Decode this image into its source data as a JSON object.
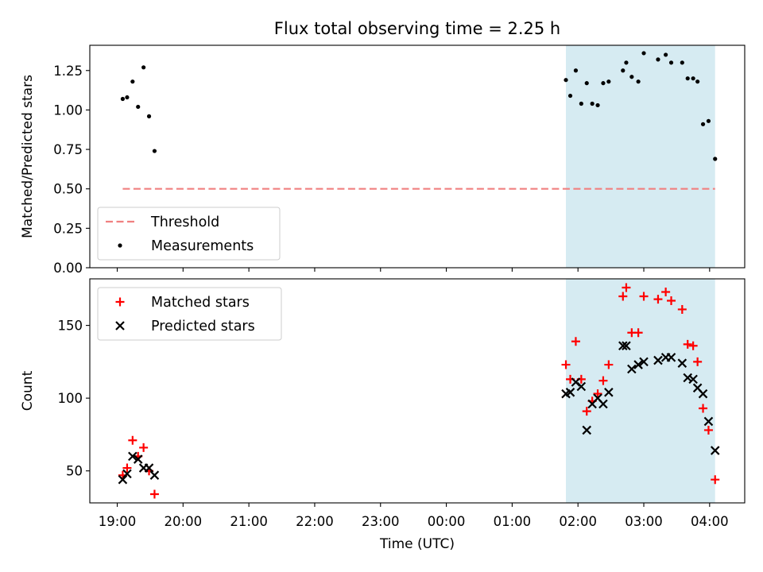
{
  "chart_data": [
    {
      "type": "scatter",
      "title": "Flux total observing time = 2.25 h",
      "xlabel": "",
      "ylabel": "Matched/Predicted stars",
      "ylim": [
        0.0,
        1.41
      ],
      "xlim": [
        "18:35",
        "04:32"
      ],
      "y_ticks": [
        "0.00",
        "0.25",
        "0.50",
        "0.75",
        "1.00",
        "1.25"
      ],
      "shaded_region": {
        "from": "01:49",
        "to": "04:05",
        "color": "#add8e6"
      },
      "threshold": {
        "name": "Threshold",
        "value": 0.5,
        "from": "19:05",
        "to": "04:05",
        "color": "#f08080",
        "style": "dashed"
      },
      "legend": {
        "position": "lower-left",
        "entries": [
          "Threshold",
          "Measurements"
        ]
      },
      "series": [
        {
          "name": "Measurements",
          "marker": "dot",
          "color": "#000000",
          "points": [
            {
              "x": "19:05",
              "y": 1.07
            },
            {
              "x": "19:09",
              "y": 1.08
            },
            {
              "x": "19:14",
              "y": 1.18
            },
            {
              "x": "19:19",
              "y": 1.02
            },
            {
              "x": "19:24",
              "y": 1.27
            },
            {
              "x": "19:29",
              "y": 0.96
            },
            {
              "x": "19:34",
              "y": 0.74
            },
            {
              "x": "01:49",
              "y": 1.19
            },
            {
              "x": "01:53",
              "y": 1.09
            },
            {
              "x": "01:58",
              "y": 1.25
            },
            {
              "x": "02:03",
              "y": 1.04
            },
            {
              "x": "02:08",
              "y": 1.17
            },
            {
              "x": "02:13",
              "y": 1.04
            },
            {
              "x": "02:18",
              "y": 1.03
            },
            {
              "x": "02:23",
              "y": 1.17
            },
            {
              "x": "02:28",
              "y": 1.18
            },
            {
              "x": "02:41",
              "y": 1.25
            },
            {
              "x": "02:44",
              "y": 1.3
            },
            {
              "x": "02:49",
              "y": 1.21
            },
            {
              "x": "02:55",
              "y": 1.18
            },
            {
              "x": "03:00",
              "y": 1.36
            },
            {
              "x": "03:13",
              "y": 1.32
            },
            {
              "x": "03:20",
              "y": 1.35
            },
            {
              "x": "03:25",
              "y": 1.3
            },
            {
              "x": "03:35",
              "y": 1.3
            },
            {
              "x": "03:40",
              "y": 1.2
            },
            {
              "x": "03:45",
              "y": 1.2
            },
            {
              "x": "03:49",
              "y": 1.18
            },
            {
              "x": "03:54",
              "y": 0.91
            },
            {
              "x": "03:59",
              "y": 0.93
            },
            {
              "x": "04:05",
              "y": 0.69
            }
          ]
        }
      ]
    },
    {
      "type": "scatter",
      "title": "",
      "xlabel": "Time (UTC)",
      "ylabel": "Count",
      "ylim": [
        28,
        182
      ],
      "xlim": [
        "18:35",
        "04:32"
      ],
      "x_ticks": [
        "19:00",
        "20:00",
        "21:00",
        "22:00",
        "23:00",
        "00:00",
        "01:00",
        "02:00",
        "03:00",
        "04:00"
      ],
      "y_ticks": [
        "50",
        "100",
        "150"
      ],
      "shaded_region": {
        "from": "01:49",
        "to": "04:05",
        "color": "#add8e6"
      },
      "legend": {
        "position": "upper-left",
        "entries": [
          "Matched stars",
          "Predicted stars"
        ]
      },
      "series": [
        {
          "name": "Matched stars",
          "marker": "plus",
          "color": "#ff0000",
          "points": [
            {
              "x": "19:05",
              "y": 47
            },
            {
              "x": "19:09",
              "y": 52
            },
            {
              "x": "19:14",
              "y": 71
            },
            {
              "x": "19:19",
              "y": 60
            },
            {
              "x": "19:24",
              "y": 66
            },
            {
              "x": "19:29",
              "y": 50
            },
            {
              "x": "19:34",
              "y": 34
            },
            {
              "x": "01:49",
              "y": 123
            },
            {
              "x": "01:53",
              "y": 113
            },
            {
              "x": "01:58",
              "y": 139
            },
            {
              "x": "02:03",
              "y": 113
            },
            {
              "x": "02:08",
              "y": 91
            },
            {
              "x": "02:13",
              "y": 98
            },
            {
              "x": "02:18",
              "y": 103
            },
            {
              "x": "02:23",
              "y": 112
            },
            {
              "x": "02:28",
              "y": 123
            },
            {
              "x": "02:41",
              "y": 170
            },
            {
              "x": "02:44",
              "y": 176
            },
            {
              "x": "02:49",
              "y": 145
            },
            {
              "x": "02:55",
              "y": 145
            },
            {
              "x": "03:00",
              "y": 170
            },
            {
              "x": "03:13",
              "y": 168
            },
            {
              "x": "03:20",
              "y": 173
            },
            {
              "x": "03:25",
              "y": 167
            },
            {
              "x": "03:35",
              "y": 161
            },
            {
              "x": "03:40",
              "y": 137
            },
            {
              "x": "03:45",
              "y": 136
            },
            {
              "x": "03:49",
              "y": 125
            },
            {
              "x": "03:54",
              "y": 93
            },
            {
              "x": "03:59",
              "y": 78
            },
            {
              "x": "04:05",
              "y": 44
            }
          ]
        },
        {
          "name": "Predicted stars",
          "marker": "x",
          "color": "#000000",
          "points": [
            {
              "x": "19:05",
              "y": 44
            },
            {
              "x": "19:09",
              "y": 48
            },
            {
              "x": "19:14",
              "y": 60
            },
            {
              "x": "19:19",
              "y": 58
            },
            {
              "x": "19:24",
              "y": 52
            },
            {
              "x": "19:29",
              "y": 52
            },
            {
              "x": "19:34",
              "y": 47
            },
            {
              "x": "01:49",
              "y": 103
            },
            {
              "x": "01:53",
              "y": 104
            },
            {
              "x": "01:58",
              "y": 111
            },
            {
              "x": "02:03",
              "y": 108
            },
            {
              "x": "02:08",
              "y": 78
            },
            {
              "x": "02:13",
              "y": 96
            },
            {
              "x": "02:18",
              "y": 100
            },
            {
              "x": "02:23",
              "y": 96
            },
            {
              "x": "02:28",
              "y": 104
            },
            {
              "x": "02:41",
              "y": 136
            },
            {
              "x": "02:44",
              "y": 136
            },
            {
              "x": "02:49",
              "y": 120
            },
            {
              "x": "02:55",
              "y": 123
            },
            {
              "x": "03:00",
              "y": 125
            },
            {
              "x": "03:13",
              "y": 126
            },
            {
              "x": "03:20",
              "y": 128
            },
            {
              "x": "03:25",
              "y": 128
            },
            {
              "x": "03:35",
              "y": 124
            },
            {
              "x": "03:40",
              "y": 114
            },
            {
              "x": "03:45",
              "y": 113
            },
            {
              "x": "03:49",
              "y": 107
            },
            {
              "x": "03:54",
              "y": 103
            },
            {
              "x": "03:59",
              "y": 84
            },
            {
              "x": "04:05",
              "y": 64
            }
          ]
        }
      ]
    }
  ]
}
